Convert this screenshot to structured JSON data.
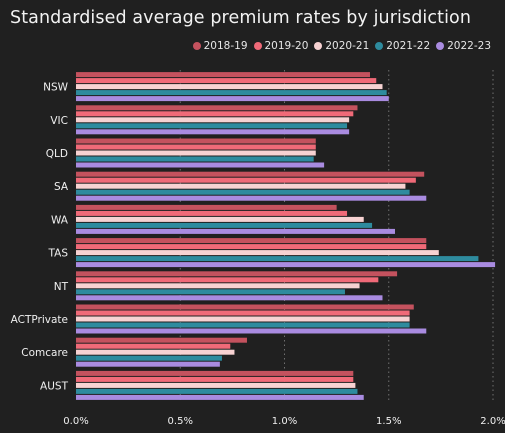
{
  "title": "Standardised average premium rates by jurisdiction",
  "chart_data": {
    "type": "bar",
    "orientation": "horizontal",
    "title": "Standardised average premium rates by jurisdiction",
    "categories": [
      "NSW",
      "VIC",
      "QLD",
      "SA",
      "WA",
      "TAS",
      "NT",
      "ACTPrivate",
      "Comcare",
      "AUST"
    ],
    "series": [
      {
        "name": "2018-19",
        "color": "#c4525e",
        "values": [
          1.41,
          1.35,
          1.15,
          1.67,
          1.25,
          1.68,
          1.54,
          1.62,
          0.82,
          1.33
        ]
      },
      {
        "name": "2019-20",
        "color": "#f06a78",
        "values": [
          1.44,
          1.33,
          1.15,
          1.63,
          1.3,
          1.68,
          1.45,
          1.6,
          0.74,
          1.33
        ]
      },
      {
        "name": "2020-21",
        "color": "#f7d2d2",
        "values": [
          1.47,
          1.31,
          1.15,
          1.58,
          1.38,
          1.74,
          1.36,
          1.6,
          0.76,
          1.34
        ]
      },
      {
        "name": "2021-22",
        "color": "#2e8b9e",
        "values": [
          1.49,
          1.3,
          1.14,
          1.6,
          1.42,
          1.93,
          1.29,
          1.6,
          0.7,
          1.35
        ]
      },
      {
        "name": "2022-23",
        "color": "#a98be0",
        "values": [
          1.5,
          1.31,
          1.19,
          1.68,
          1.53,
          2.01,
          1.47,
          1.68,
          0.69,
          1.38
        ]
      }
    ],
    "x_ticks": [
      "0.0%",
      "0.5%",
      "1.0%",
      "1.5%",
      "2.0%"
    ],
    "x_tick_values": [
      0,
      0.5,
      1.0,
      1.5,
      2.0
    ],
    "xlim": [
      0,
      2.0
    ],
    "xlabel": "",
    "ylabel": "",
    "grid": "vertical dotted",
    "legend_position": "top-right"
  }
}
